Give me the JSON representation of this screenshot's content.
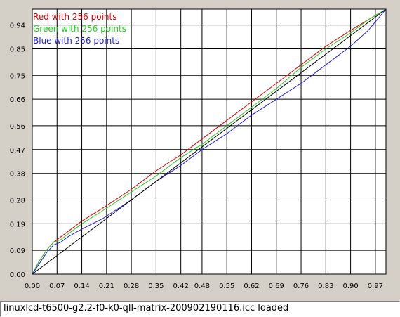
{
  "status": {
    "text": "linuxlcd-t6500-g2.2-f0-k0-qll-matrix-200902190116.icc loaded"
  },
  "chart_data": {
    "type": "line",
    "xlim": [
      0,
      1
    ],
    "ylim": [
      0,
      1
    ],
    "x_ticks": [
      "0.00",
      "0.07",
      "0.14",
      "0.21",
      "0.28",
      "0.35",
      "0.42",
      "0.48",
      "0.55",
      "0.62",
      "0.69",
      "0.76",
      "0.83",
      "0.90",
      "0.97"
    ],
    "y_ticks": [
      "0.00",
      "0.09",
      "0.19",
      "0.28",
      "0.38",
      "0.47",
      "0.56",
      "0.66",
      "0.75",
      "0.85",
      "0.94"
    ],
    "grid": true,
    "legend_position": "top-left",
    "series": [
      {
        "name": "Red with 256 points",
        "color": "#e00000",
        "x": [
          0,
          0.02,
          0.04,
          0.06,
          0.08,
          0.1,
          0.14,
          0.2,
          0.28,
          0.35,
          0.42,
          0.48,
          0.55,
          0.62,
          0.69,
          0.76,
          0.83,
          0.9,
          0.95,
          1.0
        ],
        "y": [
          0,
          0.05,
          0.09,
          0.12,
          0.14,
          0.16,
          0.2,
          0.25,
          0.32,
          0.39,
          0.45,
          0.51,
          0.58,
          0.65,
          0.72,
          0.79,
          0.86,
          0.92,
          0.96,
          1.0
        ]
      },
      {
        "name": "Green with 256 points",
        "color": "#20d020",
        "x": [
          0,
          0.02,
          0.04,
          0.06,
          0.08,
          0.1,
          0.14,
          0.2,
          0.28,
          0.35,
          0.42,
          0.48,
          0.55,
          0.62,
          0.69,
          0.76,
          0.83,
          0.9,
          0.95,
          1.0
        ],
        "y": [
          0,
          0.05,
          0.09,
          0.12,
          0.13,
          0.15,
          0.19,
          0.24,
          0.31,
          0.37,
          0.44,
          0.49,
          0.56,
          0.63,
          0.7,
          0.78,
          0.85,
          0.91,
          0.96,
          1.0
        ]
      },
      {
        "name": "Blue with 256 points",
        "color": "#2020e0",
        "x": [
          0,
          0.02,
          0.04,
          0.06,
          0.08,
          0.1,
          0.14,
          0.2,
          0.28,
          0.35,
          0.42,
          0.48,
          0.55,
          0.62,
          0.69,
          0.76,
          0.83,
          0.9,
          0.95,
          1.0
        ],
        "y": [
          0,
          0.04,
          0.08,
          0.11,
          0.12,
          0.14,
          0.17,
          0.21,
          0.28,
          0.35,
          0.41,
          0.47,
          0.53,
          0.6,
          0.66,
          0.72,
          0.79,
          0.86,
          0.92,
          1.0
        ]
      },
      {
        "name": "",
        "color": "#000000",
        "x": [
          0,
          1
        ],
        "y": [
          0,
          1
        ]
      }
    ]
  }
}
